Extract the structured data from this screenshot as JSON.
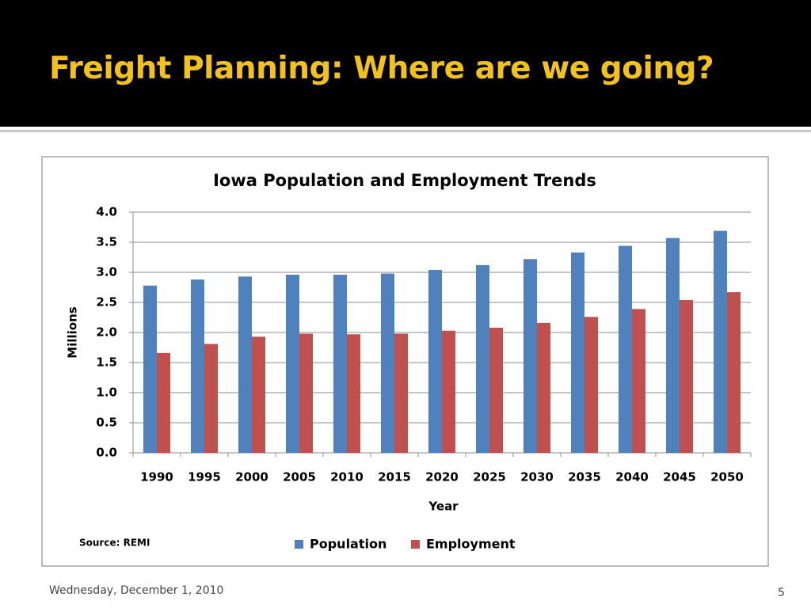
{
  "slide": {
    "title": "Freight Planning: Where are we going?",
    "date": "Wednesday, December 1, 2010",
    "page": 5
  },
  "chart_data": {
    "type": "bar",
    "title": "Iowa Population and Employment Trends",
    "x_label": "Year",
    "y_label": "Millions",
    "source": "Source: REMI",
    "categories": [
      "1990",
      "1995",
      "2000",
      "2005",
      "2010",
      "2015",
      "2020",
      "2025",
      "2030",
      "2035",
      "2040",
      "2045",
      "2050"
    ],
    "series": [
      {
        "name": "Population",
        "color": "#4f81bd",
        "values": [
          2.78,
          2.88,
          2.93,
          2.96,
          2.96,
          2.98,
          3.04,
          3.12,
          3.22,
          3.33,
          3.44,
          3.57,
          3.69
        ]
      },
      {
        "name": "Employment",
        "color": "#c0504d",
        "values": [
          1.66,
          1.81,
          1.93,
          1.98,
          1.97,
          1.98,
          2.03,
          2.08,
          2.16,
          2.26,
          2.39,
          2.54,
          2.67
        ]
      }
    ],
    "ylim": [
      0,
      4
    ],
    "yticks": [
      {
        "value": 0,
        "label": "0.0"
      },
      0.5,
      {
        "value": 1,
        "label": "1.0"
      },
      1.5,
      {
        "value": 2,
        "label": "2.0"
      },
      2.5,
      {
        "value": 3,
        "label": "3.0"
      },
      3.5,
      {
        "value": 4,
        "label": "4.0"
      }
    ],
    "grid": true,
    "legend": "bottom"
  }
}
